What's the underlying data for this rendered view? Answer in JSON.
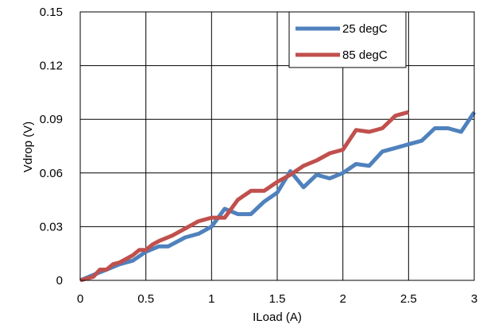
{
  "chart_data": {
    "type": "line",
    "xlabel": "ILoad (A)",
    "ylabel": "Vdrop (V)",
    "xlim": [
      0,
      3
    ],
    "ylim": [
      0,
      0.15
    ],
    "x_ticks": [
      "0",
      "0.5",
      "1",
      "1.5",
      "2",
      "2.5",
      "3"
    ],
    "y_ticks": [
      "0",
      "0.03",
      "0.06",
      "0.09",
      "0.12",
      "0.15"
    ],
    "grid": true,
    "legend_position": "top-right inside plot",
    "series": [
      {
        "name": "25 degC",
        "color": "#4F81BD",
        "points": [
          [
            0.0,
            0.0
          ],
          [
            0.1,
            0.003
          ],
          [
            0.2,
            0.006
          ],
          [
            0.3,
            0.009
          ],
          [
            0.4,
            0.011
          ],
          [
            0.5,
            0.016
          ],
          [
            0.6,
            0.019
          ],
          [
            0.67,
            0.019
          ],
          [
            0.8,
            0.024
          ],
          [
            0.9,
            0.026
          ],
          [
            1.0,
            0.03
          ],
          [
            1.1,
            0.04
          ],
          [
            1.2,
            0.037
          ],
          [
            1.3,
            0.037
          ],
          [
            1.4,
            0.044
          ],
          [
            1.5,
            0.049
          ],
          [
            1.6,
            0.061
          ],
          [
            1.7,
            0.052
          ],
          [
            1.8,
            0.059
          ],
          [
            1.9,
            0.057
          ],
          [
            2.0,
            0.06
          ],
          [
            2.1,
            0.065
          ],
          [
            2.2,
            0.064
          ],
          [
            2.3,
            0.072
          ],
          [
            2.4,
            0.074
          ],
          [
            2.5,
            0.076
          ],
          [
            2.6,
            0.078
          ],
          [
            2.7,
            0.085
          ],
          [
            2.8,
            0.085
          ],
          [
            2.9,
            0.083
          ],
          [
            3.0,
            0.094
          ]
        ]
      },
      {
        "name": "85 degC",
        "color": "#C0504D",
        "points": [
          [
            0.0,
            0.0
          ],
          [
            0.1,
            0.002
          ],
          [
            0.15,
            0.006
          ],
          [
            0.2,
            0.006
          ],
          [
            0.25,
            0.009
          ],
          [
            0.3,
            0.01
          ],
          [
            0.35,
            0.012
          ],
          [
            0.4,
            0.014
          ],
          [
            0.45,
            0.017
          ],
          [
            0.5,
            0.017
          ],
          [
            0.55,
            0.02
          ],
          [
            0.6,
            0.022
          ],
          [
            0.7,
            0.025
          ],
          [
            0.8,
            0.029
          ],
          [
            0.9,
            0.033
          ],
          [
            1.0,
            0.035
          ],
          [
            1.1,
            0.035
          ],
          [
            1.2,
            0.045
          ],
          [
            1.3,
            0.05
          ],
          [
            1.4,
            0.05
          ],
          [
            1.5,
            0.055
          ],
          [
            1.6,
            0.059
          ],
          [
            1.7,
            0.064
          ],
          [
            1.8,
            0.067
          ],
          [
            1.9,
            0.071
          ],
          [
            2.0,
            0.073
          ],
          [
            2.1,
            0.084
          ],
          [
            2.2,
            0.083
          ],
          [
            2.3,
            0.085
          ],
          [
            2.4,
            0.092
          ],
          [
            2.5,
            0.094
          ]
        ]
      }
    ]
  }
}
